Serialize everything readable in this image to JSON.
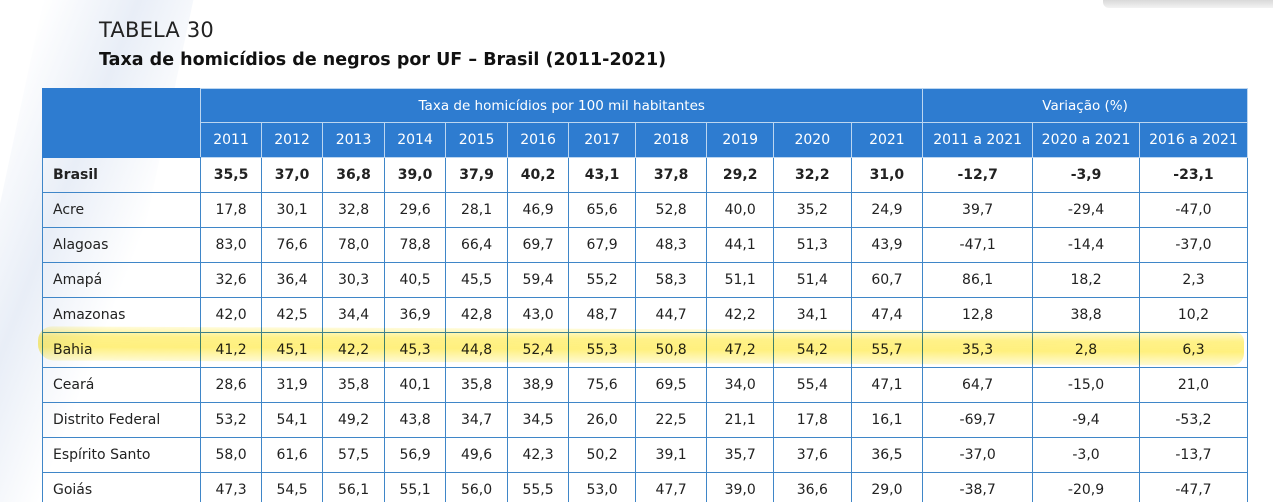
{
  "label": "TABELA 30",
  "title": "Taxa de homicídios de negros por UF – Brasil (2011-2021)",
  "colors": {
    "header_bg": "#2e7cd0",
    "border": "#3f86c8",
    "highlight": "#ffec5a"
  },
  "header": {
    "group_rate": "Taxa de homicídios por 100 mil habitantes",
    "group_var": "Variação (%)",
    "years": [
      "2011",
      "2012",
      "2013",
      "2014",
      "2015",
      "2016",
      "2017",
      "2018",
      "2019",
      "2020",
      "2021"
    ],
    "variations": [
      "2011 a 2021",
      "2020 a 2021",
      "2016 a 2021"
    ]
  },
  "rows": [
    {
      "uf": "Brasil",
      "values": [
        "35,5",
        "37,0",
        "36,8",
        "39,0",
        "37,9",
        "40,2",
        "43,1",
        "37,8",
        "29,2",
        "32,2",
        "31,0",
        "-12,7",
        "-3,9",
        "-23,1"
      ]
    },
    {
      "uf": "Acre",
      "values": [
        "17,8",
        "30,1",
        "32,8",
        "29,6",
        "28,1",
        "46,9",
        "65,6",
        "52,8",
        "40,0",
        "35,2",
        "24,9",
        "39,7",
        "-29,4",
        "-47,0"
      ]
    },
    {
      "uf": "Alagoas",
      "values": [
        "83,0",
        "76,6",
        "78,0",
        "78,8",
        "66,4",
        "69,7",
        "67,9",
        "48,3",
        "44,1",
        "51,3",
        "43,9",
        "-47,1",
        "-14,4",
        "-37,0"
      ]
    },
    {
      "uf": "Amapá",
      "values": [
        "32,6",
        "36,4",
        "30,3",
        "40,5",
        "45,5",
        "59,4",
        "55,2",
        "58,3",
        "51,1",
        "51,4",
        "60,7",
        "86,1",
        "18,2",
        "2,3"
      ]
    },
    {
      "uf": "Amazonas",
      "values": [
        "42,0",
        "42,5",
        "34,4",
        "36,9",
        "42,8",
        "43,0",
        "48,7",
        "44,7",
        "42,2",
        "34,1",
        "47,4",
        "12,8",
        "38,8",
        "10,2"
      ]
    },
    {
      "uf": "Bahia",
      "values": [
        "41,2",
        "45,1",
        "42,2",
        "45,3",
        "44,8",
        "52,4",
        "55,3",
        "50,8",
        "47,2",
        "54,2",
        "55,7",
        "35,3",
        "2,8",
        "6,3"
      ]
    },
    {
      "uf": "Ceará",
      "values": [
        "28,6",
        "31,9",
        "35,8",
        "40,1",
        "35,8",
        "38,9",
        "75,6",
        "69,5",
        "34,0",
        "55,4",
        "47,1",
        "64,7",
        "-15,0",
        "21,0"
      ]
    },
    {
      "uf": "Distrito Federal",
      "values": [
        "53,2",
        "54,1",
        "49,2",
        "43,8",
        "34,7",
        "34,5",
        "26,0",
        "22,5",
        "21,1",
        "17,8",
        "16,1",
        "-69,7",
        "-9,4",
        "-53,2"
      ]
    },
    {
      "uf": "Espírito Santo",
      "values": [
        "58,0",
        "61,6",
        "57,5",
        "56,9",
        "49,6",
        "42,3",
        "50,2",
        "39,1",
        "35,7",
        "37,6",
        "36,5",
        "-37,0",
        "-3,0",
        "-13,7"
      ]
    },
    {
      "uf": "Goiás",
      "values": [
        "47,3",
        "54,5",
        "56,1",
        "55,1",
        "56,0",
        "55,5",
        "53,0",
        "47,7",
        "39,0",
        "36,6",
        "29,0",
        "-38,7",
        "-20,9",
        "-47,7"
      ]
    }
  ]
}
